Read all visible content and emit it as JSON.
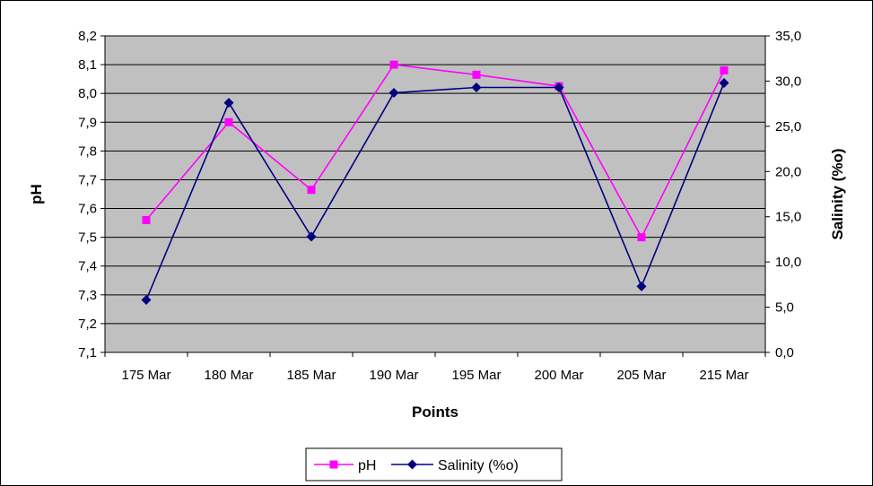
{
  "chart_data": {
    "type": "line",
    "categories": [
      "175 Mar",
      "180 Mar",
      "185 Mar",
      "190 Mar",
      "195 Mar",
      "200 Mar",
      "205 Mar",
      "215 Mar"
    ],
    "series": [
      {
        "name": "pH",
        "axis": "left",
        "color": "#ff00ff",
        "marker": "square",
        "values": [
          7.56,
          7.9,
          7.665,
          8.1,
          8.065,
          8.025,
          7.5,
          8.08
        ]
      },
      {
        "name": "Salinity (%o)",
        "axis": "right",
        "color": "#000080",
        "marker": "diamond",
        "values": [
          5.8,
          27.6,
          12.8,
          28.7,
          29.3,
          29.3,
          7.3,
          29.8
        ]
      }
    ],
    "xlabel": "Points",
    "ylabel": "pH",
    "y2label": "Salinity (%o)",
    "ylim": [
      7.1,
      8.2
    ],
    "y2lim": [
      0,
      35
    ],
    "yticks": [
      "7,1",
      "7,2",
      "7,3",
      "7,4",
      "7,5",
      "7,6",
      "7,7",
      "7,8",
      "7,9",
      "8,0",
      "8,1",
      "8,2"
    ],
    "y2ticks": [
      "0,0",
      "5,0",
      "10,0",
      "15,0",
      "20,0",
      "25,0",
      "30,0",
      "35,0"
    ],
    "plot_background": "#c0c0c0",
    "grid": true,
    "legend": "bottom"
  }
}
